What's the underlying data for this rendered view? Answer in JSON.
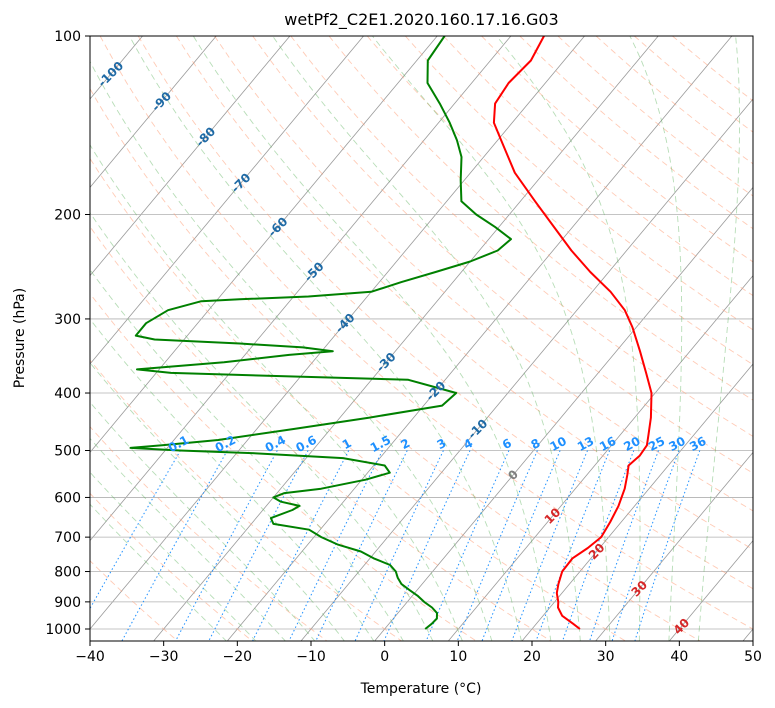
{
  "chart_data": {
    "type": "line",
    "diagram": "skew-T log-P",
    "title": "wetPf2_C2E1.2020.160.17.16.G03",
    "xlabel": "Temperature (°C)",
    "ylabel": "Pressure (hPa)",
    "xlim": [
      -40,
      50
    ],
    "ylim": [
      1050,
      100
    ],
    "yscale": "log",
    "x_ticks": [
      -40,
      -30,
      -20,
      -10,
      0,
      10,
      20,
      30,
      40,
      50
    ],
    "y_ticks": [
      100,
      200,
      300,
      400,
      500,
      600,
      700,
      800,
      900,
      1000
    ],
    "grid": true,
    "series": [
      {
        "color": "#ff0000",
        "points": [
          [
            1000,
            26.5
          ],
          [
            980,
            25.0
          ],
          [
            950,
            22.6
          ],
          [
            920,
            21.1
          ],
          [
            900,
            20.5
          ],
          [
            870,
            19.3
          ],
          [
            840,
            18.5
          ],
          [
            800,
            17.6
          ],
          [
            760,
            17.5
          ],
          [
            730,
            18.4
          ],
          [
            700,
            19.0
          ],
          [
            660,
            18.5
          ],
          [
            620,
            17.8
          ],
          [
            580,
            16.7
          ],
          [
            550,
            15.5
          ],
          [
            530,
            14.6
          ],
          [
            510,
            15.0
          ],
          [
            490,
            14.8
          ],
          [
            470,
            13.8
          ],
          [
            440,
            12.2
          ],
          [
            400,
            9.5
          ],
          [
            370,
            6.5
          ],
          [
            340,
            3.2
          ],
          [
            310,
            -0.5
          ],
          [
            290,
            -3.5
          ],
          [
            270,
            -7.5
          ],
          [
            250,
            -12.5
          ],
          [
            230,
            -17.5
          ],
          [
            210,
            -22.5
          ],
          [
            190,
            -28.0
          ],
          [
            170,
            -34.0
          ],
          [
            150,
            -39.5
          ],
          [
            140,
            -42.5
          ],
          [
            130,
            -44.5
          ],
          [
            120,
            -45.0
          ],
          [
            110,
            -44.5
          ],
          [
            100,
            -45.5
          ]
        ]
      },
      {
        "color": "#008000",
        "points": [
          [
            1000,
            5.5
          ],
          [
            980,
            5.8
          ],
          [
            960,
            5.9
          ],
          [
            940,
            5.3
          ],
          [
            920,
            4.0
          ],
          [
            900,
            2.3
          ],
          [
            880,
            0.8
          ],
          [
            860,
            -1.0
          ],
          [
            840,
            -2.8
          ],
          [
            820,
            -4.0
          ],
          [
            800,
            -5.0
          ],
          [
            780,
            -6.5
          ],
          [
            760,
            -9.5
          ],
          [
            740,
            -12.0
          ],
          [
            720,
            -16.0
          ],
          [
            700,
            -19.0
          ],
          [
            680,
            -21.5
          ],
          [
            665,
            -27.0
          ],
          [
            650,
            -28.0
          ],
          [
            630,
            -26.0
          ],
          [
            620,
            -25.5
          ],
          [
            610,
            -28.5
          ],
          [
            600,
            -30.0
          ],
          [
            590,
            -29.0
          ],
          [
            580,
            -24.5
          ],
          [
            570,
            -22.0
          ],
          [
            560,
            -19.5
          ],
          [
            545,
            -17.0
          ],
          [
            530,
            -18.5
          ],
          [
            515,
            -25.0
          ],
          [
            505,
            -38.0
          ],
          [
            500,
            -48.0
          ],
          [
            495,
            -55.0
          ],
          [
            490,
            -51.0
          ],
          [
            480,
            -44.0
          ],
          [
            460,
            -35.0
          ],
          [
            440,
            -26.0
          ],
          [
            420,
            -17.5
          ],
          [
            400,
            -17.0
          ],
          [
            380,
            -25.0
          ],
          [
            370,
            -58.0
          ],
          [
            365,
            -63.0
          ],
          [
            355,
            -52.0
          ],
          [
            345,
            -44.0
          ],
          [
            340,
            -38.5
          ],
          [
            335,
            -43.0
          ],
          [
            330,
            -52.0
          ],
          [
            325,
            -64.0
          ],
          [
            320,
            -67.0
          ],
          [
            305,
            -67.0
          ],
          [
            290,
            -65.5
          ],
          [
            280,
            -62.0
          ],
          [
            278,
            -57.0
          ],
          [
            275,
            -48.0
          ],
          [
            270,
            -40.0
          ],
          [
            260,
            -37.0
          ],
          [
            250,
            -33.5
          ],
          [
            240,
            -30.0
          ],
          [
            230,
            -27.5
          ],
          [
            220,
            -27.0
          ],
          [
            210,
            -30.5
          ],
          [
            200,
            -34.5
          ],
          [
            190,
            -38.0
          ],
          [
            175,
            -40.5
          ],
          [
            160,
            -43.0
          ],
          [
            150,
            -45.5
          ],
          [
            140,
            -48.5
          ],
          [
            130,
            -52.0
          ],
          [
            120,
            -56.0
          ],
          [
            110,
            -58.5
          ],
          [
            100,
            -59.0
          ]
        ]
      }
    ],
    "annotations": {
      "mixing_ratio_labels": [
        "0.1",
        "0.2",
        "0.4",
        "0.6",
        "1",
        "1.5",
        "2",
        "3",
        "4",
        "6",
        "8",
        "10",
        "13",
        "16",
        "20",
        "25",
        "30",
        "36"
      ],
      "isotherm_labels": [
        "-100",
        "-90",
        "-80",
        "-70",
        "-60",
        "-50",
        "-40",
        "-30",
        "-20",
        "-10",
        "0",
        "10",
        "20",
        "30",
        "40"
      ]
    }
  }
}
